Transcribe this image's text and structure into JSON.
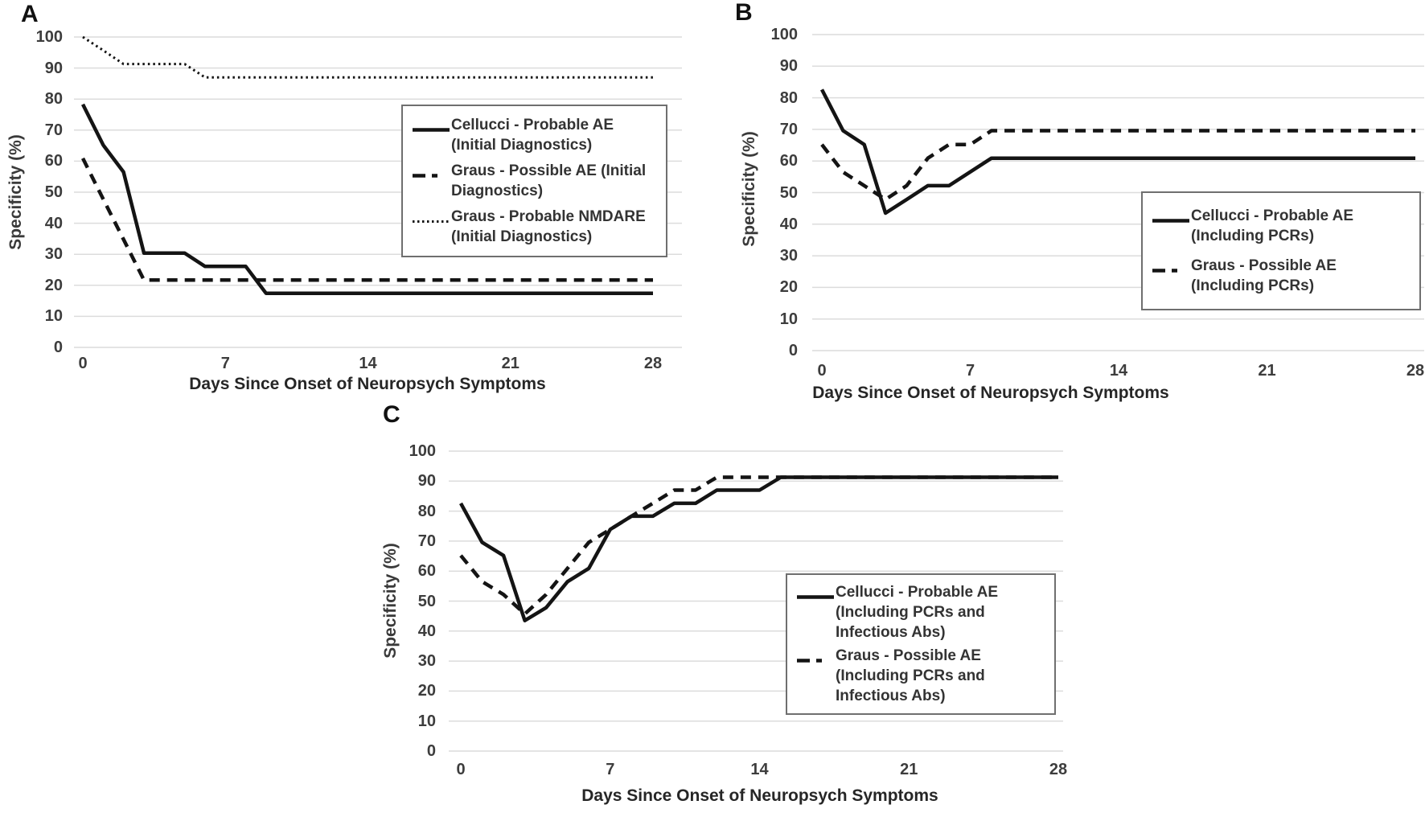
{
  "colors": {
    "line": "#141414",
    "grid": "#dcdcdc",
    "tick_text": "#3d3d3d",
    "title_text": "#262626",
    "legend_border": "#6f6f6f",
    "background": "#ffffff"
  },
  "chart_data": [
    {
      "panel": "A",
      "label": "A",
      "type": "line",
      "xlabel": "Days Since Onset of Neuropsych Symptoms",
      "ylabel": "Specificity (%)",
      "x_ticks": [
        0,
        7,
        14,
        21,
        28
      ],
      "y_ticks": [
        0,
        10,
        20,
        30,
        40,
        50,
        60,
        70,
        80,
        90,
        100
      ],
      "xlim": [
        0,
        28
      ],
      "ylim": [
        0,
        100
      ],
      "grid": "horizontal",
      "legend_position": "inside-right",
      "series": [
        {
          "name": "Cellucci - Probable AE (Initial Diagnostics)",
          "style": "solid",
          "x": [
            0,
            1,
            2,
            3,
            5,
            6,
            8,
            9,
            28
          ],
          "y": [
            78.3,
            65.2,
            56.5,
            30.4,
            30.4,
            26.1,
            26.1,
            17.4,
            17.4
          ]
        },
        {
          "name": "Graus - Possible AE (Initial Diagnostics)",
          "style": "dashed",
          "x": [
            0,
            1,
            2,
            3,
            28
          ],
          "y": [
            60.9,
            47.8,
            34.8,
            21.7,
            21.7
          ]
        },
        {
          "name": "Graus - Probable NMDARE (Initial Diagnostics)",
          "style": "dotted",
          "x": [
            0,
            1,
            2,
            5,
            6,
            28
          ],
          "y": [
            100,
            95.7,
            91.3,
            91.3,
            87.0,
            87.0
          ]
        }
      ]
    },
    {
      "panel": "B",
      "label": "B",
      "type": "line",
      "xlabel": "Days Since Onset of Neuropsych Symptoms",
      "ylabel": "Specificity (%)",
      "x_ticks": [
        0,
        7,
        14,
        21,
        28
      ],
      "y_ticks": [
        0,
        10,
        20,
        30,
        40,
        50,
        60,
        70,
        80,
        90,
        100
      ],
      "xlim": [
        0,
        28
      ],
      "ylim": [
        0,
        100
      ],
      "grid": "horizontal",
      "legend_position": "inside-right",
      "series": [
        {
          "name": "Cellucci - Probable AE (Including PCRs)",
          "style": "solid",
          "x": [
            0,
            1,
            2,
            3,
            4,
            5,
            6,
            8,
            28
          ],
          "y": [
            82.6,
            69.6,
            65.2,
            43.5,
            47.8,
            52.2,
            52.2,
            60.9,
            60.9
          ]
        },
        {
          "name": "Graus - Possible AE (Including PCRs)",
          "style": "dashed",
          "x": [
            0,
            1,
            2,
            3,
            4,
            5,
            6,
            7,
            8,
            28
          ],
          "y": [
            65.2,
            56.5,
            52.2,
            47.8,
            52.2,
            60.9,
            65.2,
            65.2,
            69.6,
            69.6
          ]
        }
      ]
    },
    {
      "panel": "C",
      "label": "C",
      "type": "line",
      "xlabel": "Days Since Onset of Neuropsych Symptoms",
      "ylabel": "Specificity (%)",
      "x_ticks": [
        0,
        7,
        14,
        21,
        28
      ],
      "y_ticks": [
        0,
        10,
        20,
        30,
        40,
        50,
        60,
        70,
        80,
        90,
        100
      ],
      "xlim": [
        0,
        28
      ],
      "ylim": [
        0,
        100
      ],
      "grid": "horizontal",
      "legend_position": "inside-right",
      "series": [
        {
          "name": "Cellucci - Probable AE (Including PCRs and Infectious Abs)",
          "style": "solid",
          "x": [
            0,
            1,
            2,
            3,
            4,
            5,
            6,
            7,
            8,
            9,
            10,
            11,
            12,
            14,
            15,
            28
          ],
          "y": [
            82.6,
            69.6,
            65.2,
            43.5,
            47.8,
            56.5,
            60.9,
            73.9,
            78.3,
            78.3,
            82.6,
            82.6,
            87.0,
            87.0,
            91.3,
            91.3
          ]
        },
        {
          "name": "Graus - Possible AE (Including PCRs and Infectious Abs)",
          "style": "dashed",
          "x": [
            0,
            1,
            2,
            3,
            4,
            5,
            6,
            7,
            8,
            9,
            10,
            11,
            12,
            28
          ],
          "y": [
            65.2,
            56.5,
            52.2,
            45.7,
            52.2,
            60.9,
            69.6,
            73.9,
            78.3,
            82.6,
            87.0,
            87.0,
            91.3,
            91.3
          ]
        }
      ]
    }
  ]
}
